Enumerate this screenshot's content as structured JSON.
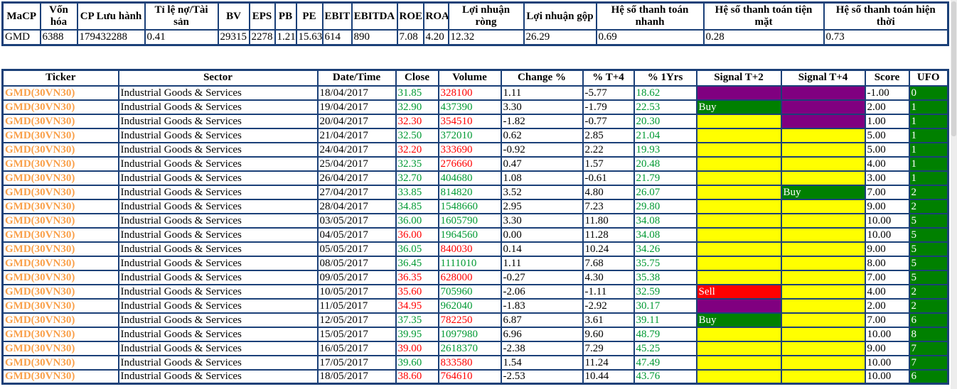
{
  "palette": {
    "border_navy": "#1b4078",
    "text_up_green": "#009933",
    "text_down_red": "#ff0000",
    "ticker_orange": "#f9a04a",
    "ufo_green": "#008000"
  },
  "signal": {
    "colors": {
      "buy": "#008000",
      "sell": "#ff0000",
      "hold": "#ffff00",
      "warn": "#800080"
    },
    "labels": {
      "buy": "Buy",
      "sell": "Sell",
      "hold": "",
      "warn": ""
    }
  },
  "stats_table": {
    "headers": [
      "MaCP",
      "Vốn hóa",
      "CP Lưu hành",
      "Tỉ lệ nợ/Tài sản",
      "BV",
      "EPS",
      "PB",
      "PE",
      "EBIT",
      "EBITDA",
      "ROE",
      "ROA",
      "Lợi nhuận ròng",
      "Lợi nhuận gộp",
      "Hệ số thanh toán nhanh",
      "Hệ số thanh toán tiện mặt",
      "Hệ số thanh toán hiện thời"
    ],
    "values": [
      "GMD",
      "6388",
      "179432288",
      "0.41",
      "29315",
      "2278",
      "1.21",
      "15.63",
      "614",
      "890",
      "7.08",
      "4.20",
      "12.32",
      "26.29",
      "0.69",
      "0.28",
      "0.73"
    ]
  },
  "main_table": {
    "headers": [
      "Ticker",
      "Sector",
      "Date/Time",
      "Close",
      "Volume",
      "Change %",
      "% T+4",
      "% 1Yrs",
      "Signal T+2",
      "Signal T+4",
      "Score",
      "UFO"
    ],
    "rows": [
      {
        "ticker": "GMD(30VN30)",
        "sector": "Industrial Goods & Services",
        "date": "18/04/2017",
        "close": "31.85",
        "close_dir": "up",
        "volume": "328100",
        "vol_dir": "down",
        "change": "1.11",
        "t4": "-5.77",
        "yrs1": "18.62",
        "s2": "warn",
        "s4": "warn",
        "score": "-1.00",
        "ufo": "0"
      },
      {
        "ticker": "GMD(30VN30)",
        "sector": "Industrial Goods & Services",
        "date": "19/04/2017",
        "close": "32.90",
        "close_dir": "up",
        "volume": "437390",
        "vol_dir": "up",
        "change": "3.30",
        "t4": "-1.79",
        "yrs1": "22.53",
        "s2": "buy",
        "s4": "warn",
        "score": "2.00",
        "ufo": "1"
      },
      {
        "ticker": "GMD(30VN30)",
        "sector": "Industrial Goods & Services",
        "date": "20/04/2017",
        "close": "32.30",
        "close_dir": "down",
        "volume": "354510",
        "vol_dir": "down",
        "change": "-1.82",
        "t4": "-0.77",
        "yrs1": "20.30",
        "s2": "hold",
        "s4": "warn",
        "score": "1.00",
        "ufo": "1"
      },
      {
        "ticker": "GMD(30VN30)",
        "sector": "Industrial Goods & Services",
        "date": "21/04/2017",
        "close": "32.50",
        "close_dir": "up",
        "volume": "372010",
        "vol_dir": "up",
        "change": "0.62",
        "t4": "2.85",
        "yrs1": "21.04",
        "s2": "hold",
        "s4": "hold",
        "score": "5.00",
        "ufo": "1"
      },
      {
        "ticker": "GMD(30VN30)",
        "sector": "Industrial Goods & Services",
        "date": "24/04/2017",
        "close": "32.20",
        "close_dir": "down",
        "volume": "333690",
        "vol_dir": "down",
        "change": "-0.92",
        "t4": "2.22",
        "yrs1": "19.93",
        "s2": "hold",
        "s4": "hold",
        "score": "5.00",
        "ufo": "1"
      },
      {
        "ticker": "GMD(30VN30)",
        "sector": "Industrial Goods & Services",
        "date": "25/04/2017",
        "close": "32.35",
        "close_dir": "up",
        "volume": "276660",
        "vol_dir": "down",
        "change": "0.47",
        "t4": "1.57",
        "yrs1": "20.48",
        "s2": "hold",
        "s4": "hold",
        "score": "4.00",
        "ufo": "1"
      },
      {
        "ticker": "GMD(30VN30)",
        "sector": "Industrial Goods & Services",
        "date": "26/04/2017",
        "close": "32.70",
        "close_dir": "up",
        "volume": "404680",
        "vol_dir": "up",
        "change": "1.08",
        "t4": "-0.61",
        "yrs1": "21.79",
        "s2": "hold",
        "s4": "hold",
        "score": "3.00",
        "ufo": "1"
      },
      {
        "ticker": "GMD(30VN30)",
        "sector": "Industrial Goods & Services",
        "date": "27/04/2017",
        "close": "33.85",
        "close_dir": "up",
        "volume": "814820",
        "vol_dir": "up",
        "change": "3.52",
        "t4": "4.80",
        "yrs1": "26.07",
        "s2": "hold",
        "s4": "buy",
        "score": "7.00",
        "ufo": "2"
      },
      {
        "ticker": "GMD(30VN30)",
        "sector": "Industrial Goods & Services",
        "date": "28/04/2017",
        "close": "34.85",
        "close_dir": "up",
        "volume": "1548660",
        "vol_dir": "up",
        "change": "2.95",
        "t4": "7.23",
        "yrs1": "29.80",
        "s2": "hold",
        "s4": "hold",
        "score": "9.00",
        "ufo": "2"
      },
      {
        "ticker": "GMD(30VN30)",
        "sector": "Industrial Goods & Services",
        "date": "03/05/2017",
        "close": "36.00",
        "close_dir": "up",
        "volume": "1605790",
        "vol_dir": "up",
        "change": "3.30",
        "t4": "11.80",
        "yrs1": "34.08",
        "s2": "hold",
        "s4": "hold",
        "score": "10.00",
        "ufo": "5"
      },
      {
        "ticker": "GMD(30VN30)",
        "sector": "Industrial Goods & Services",
        "date": "04/05/2017",
        "close": "36.00",
        "close_dir": "down",
        "volume": "1964560",
        "vol_dir": "up",
        "change": "0.00",
        "t4": "11.28",
        "yrs1": "34.08",
        "s2": "hold",
        "s4": "hold",
        "score": "10.00",
        "ufo": "5"
      },
      {
        "ticker": "GMD(30VN30)",
        "sector": "Industrial Goods & Services",
        "date": "05/05/2017",
        "close": "36.05",
        "close_dir": "up",
        "volume": "840030",
        "vol_dir": "down",
        "change": "0.14",
        "t4": "10.24",
        "yrs1": "34.26",
        "s2": "hold",
        "s4": "hold",
        "score": "9.00",
        "ufo": "5"
      },
      {
        "ticker": "GMD(30VN30)",
        "sector": "Industrial Goods & Services",
        "date": "08/05/2017",
        "close": "36.45",
        "close_dir": "up",
        "volume": "1111010",
        "vol_dir": "up",
        "change": "1.11",
        "t4": "7.68",
        "yrs1": "35.75",
        "s2": "hold",
        "s4": "hold",
        "score": "8.00",
        "ufo": "5"
      },
      {
        "ticker": "GMD(30VN30)",
        "sector": "Industrial Goods & Services",
        "date": "09/05/2017",
        "close": "36.35",
        "close_dir": "down",
        "volume": "628000",
        "vol_dir": "down",
        "change": "-0.27",
        "t4": "4.30",
        "yrs1": "35.38",
        "s2": "hold",
        "s4": "hold",
        "score": "7.00",
        "ufo": "5"
      },
      {
        "ticker": "GMD(30VN30)",
        "sector": "Industrial Goods & Services",
        "date": "10/05/2017",
        "close": "35.60",
        "close_dir": "down",
        "volume": "705960",
        "vol_dir": "up",
        "change": "-2.06",
        "t4": "-1.11",
        "yrs1": "32.59",
        "s2": "sell",
        "s4": "hold",
        "score": "4.00",
        "ufo": "2"
      },
      {
        "ticker": "GMD(30VN30)",
        "sector": "Industrial Goods & Services",
        "date": "11/05/2017",
        "close": "34.95",
        "close_dir": "down",
        "volume": "962040",
        "vol_dir": "up",
        "change": "-1.83",
        "t4": "-2.92",
        "yrs1": "30.17",
        "s2": "warn",
        "s4": "hold",
        "score": "2.00",
        "ufo": "2"
      },
      {
        "ticker": "GMD(30VN30)",
        "sector": "Industrial Goods & Services",
        "date": "12/05/2017",
        "close": "37.35",
        "close_dir": "up",
        "volume": "782250",
        "vol_dir": "down",
        "change": "6.87",
        "t4": "3.61",
        "yrs1": "39.11",
        "s2": "buy",
        "s4": "hold",
        "score": "7.00",
        "ufo": "6"
      },
      {
        "ticker": "GMD(30VN30)",
        "sector": "Industrial Goods & Services",
        "date": "15/05/2017",
        "close": "39.95",
        "close_dir": "up",
        "volume": "1097980",
        "vol_dir": "up",
        "change": "6.96",
        "t4": "9.60",
        "yrs1": "48.79",
        "s2": "hold",
        "s4": "hold",
        "score": "10.00",
        "ufo": "8"
      },
      {
        "ticker": "GMD(30VN30)",
        "sector": "Industrial Goods & Services",
        "date": "16/05/2017",
        "close": "39.00",
        "close_dir": "down",
        "volume": "2618370",
        "vol_dir": "up",
        "change": "-2.38",
        "t4": "7.29",
        "yrs1": "45.25",
        "s2": "hold",
        "s4": "hold",
        "score": "9.00",
        "ufo": "7"
      },
      {
        "ticker": "GMD(30VN30)",
        "sector": "Industrial Goods & Services",
        "date": "17/05/2017",
        "close": "39.60",
        "close_dir": "up",
        "volume": "833580",
        "vol_dir": "down",
        "change": "1.54",
        "t4": "11.24",
        "yrs1": "47.49",
        "s2": "hold",
        "s4": "hold",
        "score": "10.00",
        "ufo": "7"
      },
      {
        "ticker": "GMD(30VN30)",
        "sector": "Industrial Goods & Services",
        "date": "18/05/2017",
        "close": "38.60",
        "close_dir": "down",
        "volume": "764610",
        "vol_dir": "down",
        "change": "-2.53",
        "t4": "10.44",
        "yrs1": "43.76",
        "s2": "hold",
        "s4": "hold",
        "score": "10.00",
        "ufo": "6"
      }
    ]
  }
}
